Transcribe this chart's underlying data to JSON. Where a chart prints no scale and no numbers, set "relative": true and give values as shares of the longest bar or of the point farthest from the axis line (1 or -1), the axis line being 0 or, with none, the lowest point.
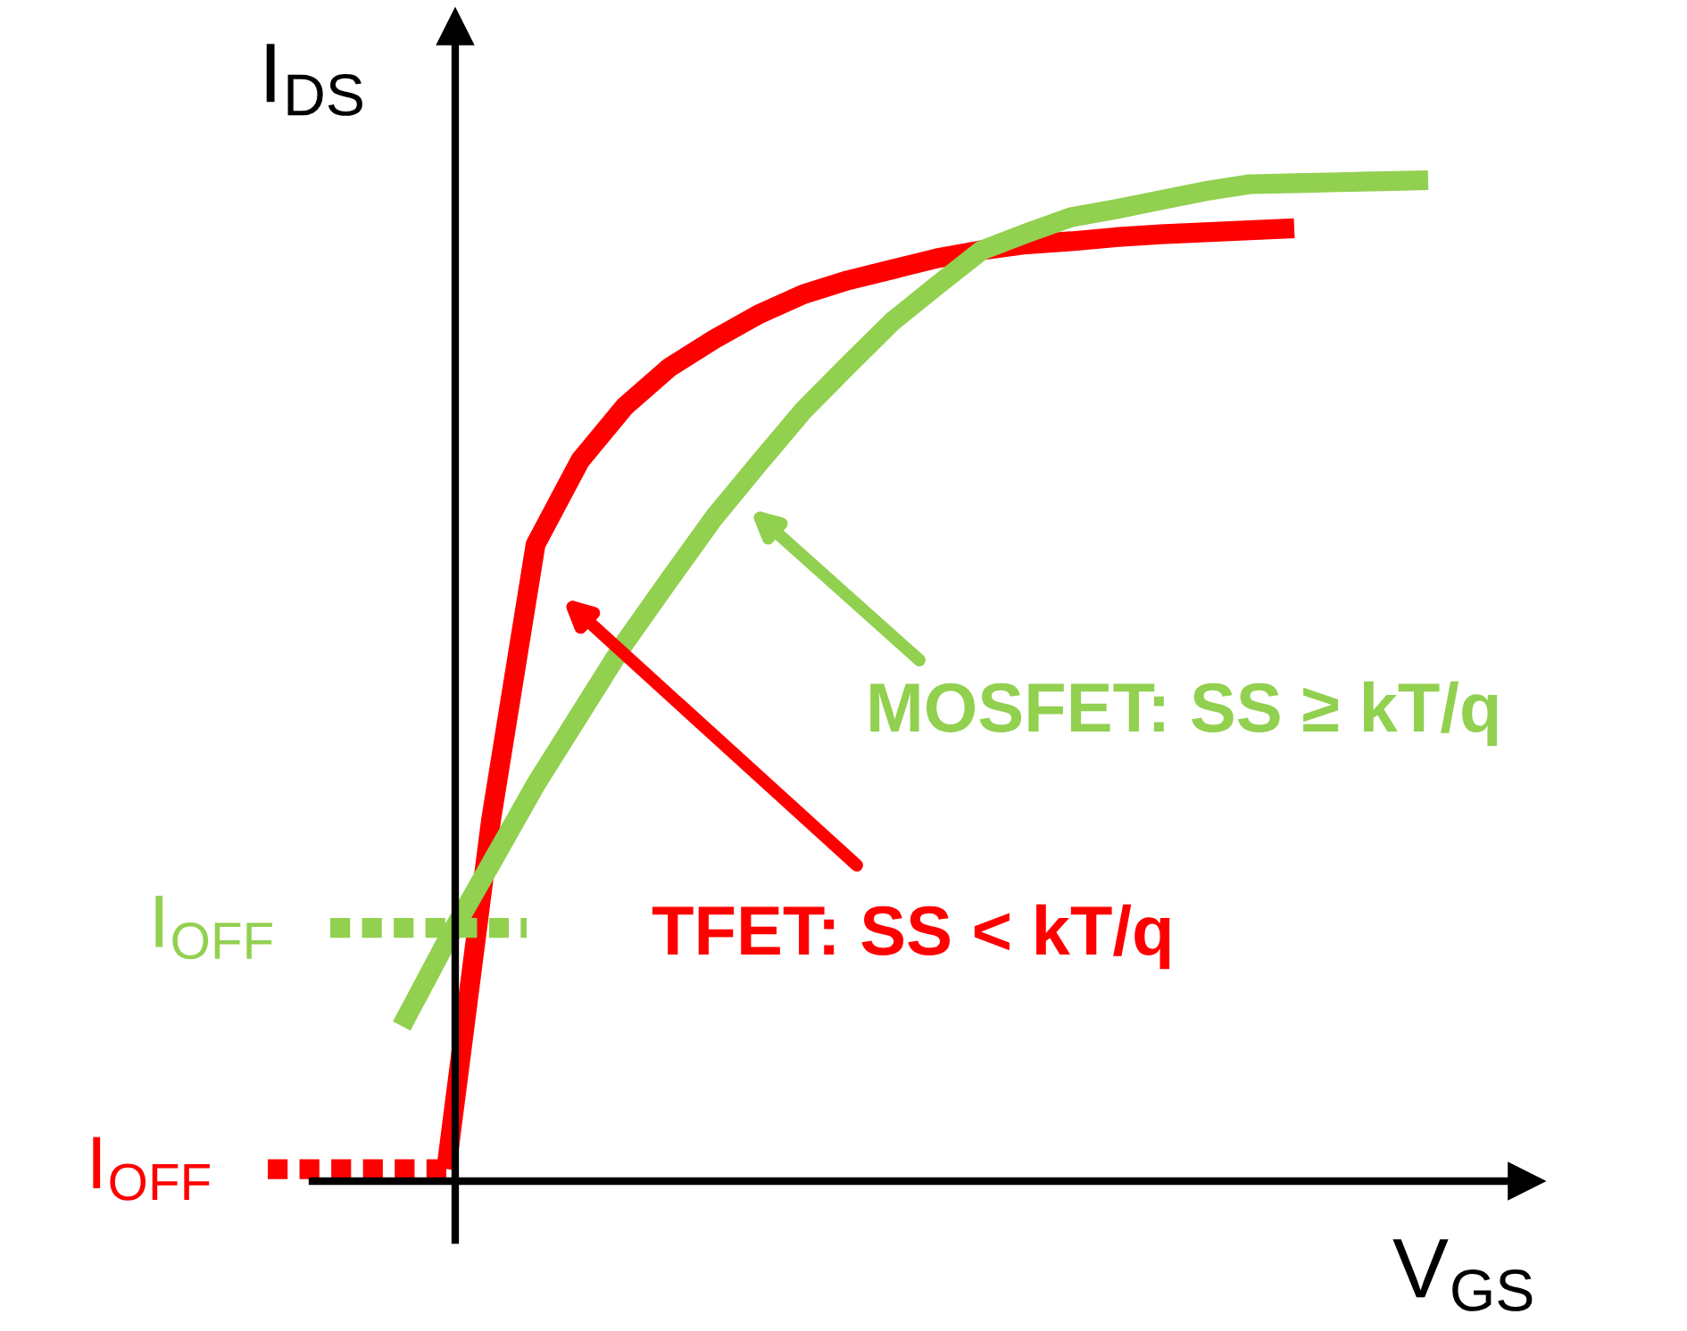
{
  "chart_data": {
    "type": "line",
    "relative": true,
    "xlabel": "V$_{GS}$",
    "ylabel": "I$_{DS}$",
    "legend": false,
    "marker": "none",
    "line_style": "solid",
    "categories": [
      null,
      null,
      null,
      null,
      null,
      null,
      null,
      null,
      null,
      null,
      null,
      null,
      null,
      null,
      null,
      null,
      null,
      null,
      null,
      null,
      null,
      null,
      null,
      null
    ],
    "series": [
      {
        "color": "#ff0000",
        "values": [
          null,
          0.012,
          0.36,
          0.636,
          0.72,
          0.774,
          0.813,
          0.841,
          0.866,
          0.886,
          0.9,
          0.911,
          0.922,
          0.93,
          0.936,
          0.939,
          0.943,
          0.946,
          0.948,
          0.95,
          0.952,
          null,
          null,
          null
        ]
      },
      {
        "color": "#92d050",
        "values": [
          0.155,
          0.239,
          0.317,
          0.396,
          0.467,
          0.538,
          0.601,
          0.663,
          0.717,
          0.77,
          0.815,
          0.859,
          0.895,
          0.93,
          0.947,
          0.963,
          0.971,
          0.98,
          0.989,
          0.996,
          0.997,
          0.998,
          0.999,
          1.0
        ]
      }
    ],
    "annotations": [
      "TFET: SS < kT/q",
      "MOSFET: SS ≥ kT/q"
    ],
    "ref_lines": [
      {
        "axis": "y",
        "value": 0.253,
        "label": "I$_{OFF}$",
        "color": "#92d050",
        "line_style": "dotted"
      },
      {
        "axis": "y",
        "value": 0.012,
        "label": "I$_{OFF}$",
        "color": "#ff0000",
        "line_style": "dotted"
      }
    ]
  }
}
